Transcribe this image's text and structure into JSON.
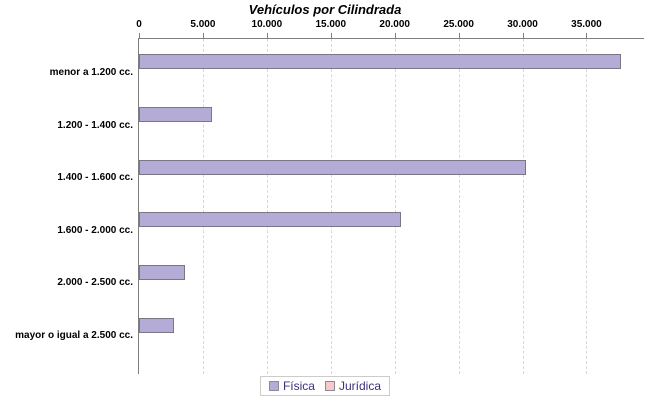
{
  "chart_data": {
    "type": "bar",
    "orientation": "horizontal",
    "title": "Vehículos por Cilindrada",
    "categories": [
      "menor a 1.200 cc.",
      "1.200 - 1.400 cc.",
      "1.400 - 1.600 cc.",
      "1.600 - 2.000 cc.",
      "2.000 - 2.500 cc.",
      "mayor o igual a 2.500 cc."
    ],
    "series": [
      {
        "name": "Física",
        "color": "#b5abd7",
        "values": [
          37700,
          5700,
          30300,
          20500,
          3600,
          2700
        ]
      },
      {
        "name": "Jurídica",
        "color": "#f7caca",
        "values": []
      }
    ],
    "xlim": [
      0,
      39500
    ],
    "xticks": {
      "values": [
        0,
        5000,
        10000,
        15000,
        20000,
        25000,
        30000,
        35000
      ],
      "labels": [
        "0",
        "5.000",
        "10.000",
        "15.000",
        "20.000",
        "25.000",
        "30.000",
        "35.000"
      ]
    },
    "grid": "vertical-dashed",
    "legend_position": "bottom-center"
  },
  "legend": {
    "entries": [
      {
        "label": "Física",
        "color": "#b5abd7"
      },
      {
        "label": "Jurídica",
        "color": "#f7caca"
      }
    ]
  },
  "colors": {
    "axis_line": "#7f7f7f",
    "gridline": "#d8d8d8",
    "bar_fill": "#b5abd7",
    "bar_border": "#7b7685",
    "legend_text": "#38307d",
    "title_text": "#000000",
    "background": "#ffffff"
  }
}
